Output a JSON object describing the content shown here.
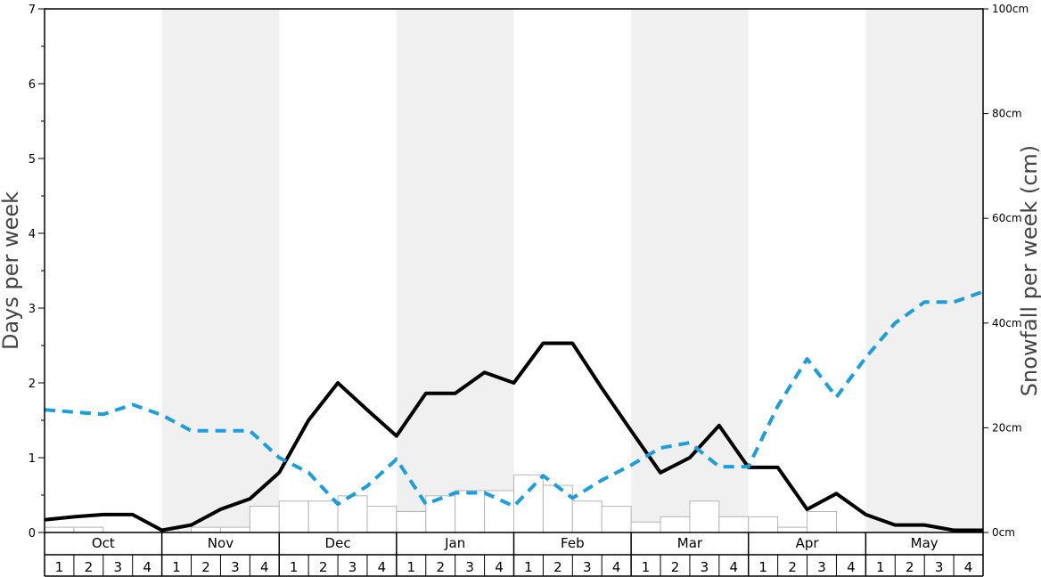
{
  "chart_data": {
    "type": "bar+line",
    "months": [
      "Oct",
      "Nov",
      "Dec",
      "Jan",
      "Feb",
      "Mar",
      "Apr",
      "May"
    ],
    "weeks_per_month": [
      "1",
      "2",
      "3",
      "4"
    ],
    "ylabel_left": "Days per week",
    "ylabel_right": "Snowfall per week (cm)",
    "ylim_left": [
      0,
      7
    ],
    "ylim_right": [
      0,
      100
    ],
    "yticks_left": [
      0,
      1,
      2,
      3,
      4,
      5,
      6,
      7
    ],
    "yticks_right": [
      "0cm",
      "20cm",
      "40cm",
      "60cm",
      "80cm",
      "100cm"
    ],
    "yticks_right_values": [
      0,
      20,
      40,
      60,
      80,
      100
    ],
    "snowfall_bars_days": [
      0.07,
      0.07,
      0,
      0,
      0,
      0.07,
      0.07,
      0.35,
      0.42,
      0.42,
      0.49,
      0.35,
      0.28,
      0.49,
      0.56,
      0.56,
      0.77,
      0.63,
      0.42,
      0.35,
      0.14,
      0.21,
      0.42,
      0.21,
      0.21,
      0.07,
      0.28,
      0,
      0,
      0,
      0,
      0
    ],
    "series": [
      {
        "name": "",
        "style": "solid",
        "color": "#000000",
        "values": [
          0.17,
          0.21,
          0.24,
          0.24,
          0.03,
          0.1,
          0.31,
          0.45,
          0.8,
          1.5,
          2.0,
          1.64,
          1.29,
          1.86,
          1.86,
          2.14,
          2.0,
          2.53,
          2.53,
          1.93,
          1.36,
          0.8,
          1.0,
          1.43,
          0.87,
          0.87,
          0.31,
          0.52,
          0.24,
          0.1,
          0.1,
          0.03,
          0.03
        ]
      },
      {
        "name": "",
        "style": "dashed",
        "color": "#1a9ee0",
        "values": [
          1.64,
          1.61,
          1.58,
          1.71,
          1.57,
          1.36,
          1.36,
          1.36,
          1.0,
          0.8,
          0.38,
          0.62,
          0.98,
          0.38,
          0.53,
          0.53,
          0.35,
          0.76,
          0.46,
          0.7,
          0.9,
          1.13,
          1.2,
          0.88,
          0.88,
          1.69,
          2.32,
          1.81,
          2.34,
          2.8,
          3.08,
          3.08,
          3.22
        ]
      }
    ],
    "grid": false,
    "legend": "none"
  },
  "colors": {
    "shade": "#f0f0f0",
    "bar_fill": "#ffffff",
    "bar_stroke": "#b5b5b5",
    "solid_line": "#000000",
    "dashed_line": "#1a9ee0"
  }
}
